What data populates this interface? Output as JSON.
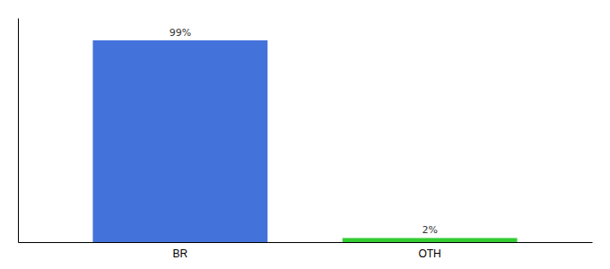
{
  "chart_data": {
    "type": "bar",
    "categories": [
      "BR",
      "OTH"
    ],
    "values": [
      99,
      2
    ],
    "value_labels": [
      "99%",
      "2%"
    ],
    "colors": [
      "#4472db",
      "#33cc33"
    ],
    "ylim": [
      0,
      110
    ],
    "data_labels": true,
    "tick_labels": "x"
  }
}
